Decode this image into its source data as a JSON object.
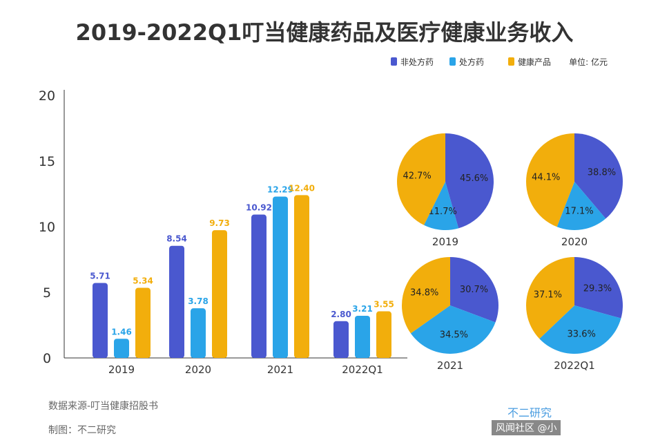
{
  "chart_data": {
    "type": "bar",
    "title": "2019-2022Q1叮当健康药品及医疗健康业务收入",
    "unit": "单位: 亿元",
    "categories": [
      "2019",
      "2020",
      "2021",
      "2022Q1"
    ],
    "ylim": [
      0,
      20
    ],
    "yticks": [
      "0",
      "5",
      "10",
      "15",
      "20"
    ],
    "series": [
      {
        "name": "非处方药",
        "color": "#4a58cf",
        "values": [
          5.71,
          8.54,
          10.92,
          2.8
        ],
        "labels": [
          "5.71",
          "8.54",
          "10.92",
          "2.80"
        ]
      },
      {
        "name": "处方药",
        "color": "#2aa4e8",
        "values": [
          1.46,
          3.78,
          12.29,
          3.21
        ],
        "labels": [
          "1.46",
          "3.78",
          "12.29",
          "3.21"
        ]
      },
      {
        "name": "健康产品",
        "color": "#f2ae0c",
        "values": [
          5.34,
          9.73,
          12.4,
          3.55
        ],
        "labels": [
          "5.34",
          "9.73",
          "12.40",
          "3.55"
        ]
      }
    ],
    "pies": [
      {
        "name": "2019",
        "slices": [
          {
            "label": "45.6%",
            "value": 45.6
          },
          {
            "label": "11.7%",
            "value": 11.7
          },
          {
            "label": "42.7%",
            "value": 42.7
          }
        ]
      },
      {
        "name": "2020",
        "slices": [
          {
            "label": "38.8%",
            "value": 38.8
          },
          {
            "label": "17.1%",
            "value": 17.1
          },
          {
            "label": "44.1%",
            "value": 44.1
          }
        ]
      },
      {
        "name": "2021",
        "slices": [
          {
            "label": "30.7%",
            "value": 30.7
          },
          {
            "label": "34.5%",
            "value": 34.5
          },
          {
            "label": "34.8%",
            "value": 34.8
          }
        ]
      },
      {
        "name": "2022Q1",
        "slices": [
          {
            "label": "29.3%",
            "value": 29.3
          },
          {
            "label": "33.6%",
            "value": 33.6
          },
          {
            "label": "37.1%",
            "value": 37.1
          }
        ]
      }
    ]
  },
  "footer": {
    "source": "数据来源-叮当健康招股书",
    "maker": "制图：不二研究",
    "brand": "不二研究",
    "watermark": "风闻社区 @小"
  }
}
